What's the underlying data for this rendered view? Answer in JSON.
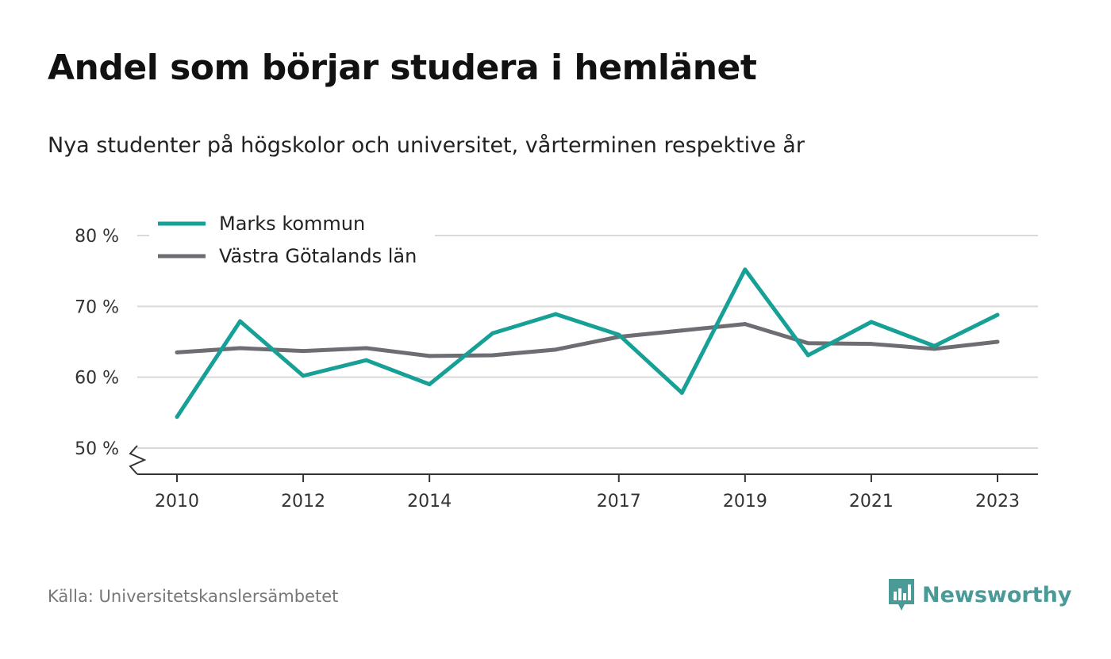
{
  "title": "Andel som börjar studera i hemlänet",
  "subtitle": "Nya studenter på högskolor och universitet, vårterminen respektive år",
  "source": "Källa: Universitetskanslersämbetet",
  "brand": "Newsworthy",
  "colors": {
    "marks": "#16a096",
    "vastra": "#6e6d73",
    "grid": "#d9d9d9",
    "axis": "#333333",
    "brand": "#4a9a98"
  },
  "chart_data": {
    "type": "line",
    "title": "Andel som börjar studera i hemlänet",
    "subtitle": "Nya studenter på högskolor och universitet, vårterminen respektive år",
    "x": [
      2010,
      2011,
      2012,
      2013,
      2014,
      2015,
      2016,
      2017,
      2018,
      2019,
      2020,
      2021,
      2022,
      2023
    ],
    "x_ticks": [
      2010,
      2012,
      2014,
      2017,
      2019,
      2021,
      2023
    ],
    "x_tick_labels": [
      "2010",
      "2012",
      "2014",
      "2017",
      "2019",
      "2021",
      "2023"
    ],
    "y_ticks": [
      50,
      60,
      70,
      80
    ],
    "y_tick_labels": [
      "50 %",
      "60 %",
      "70 %",
      "80 %"
    ],
    "ylim": [
      50,
      80
    ],
    "y_axis_break": true,
    "grid": true,
    "legend_position": "top-left",
    "series": [
      {
        "name": "Marks kommun",
        "color": "#16a096",
        "values": [
          54.4,
          67.9,
          60.2,
          62.4,
          59.0,
          66.2,
          68.9,
          66.0,
          57.8,
          75.2,
          63.1,
          67.8,
          64.4,
          68.8
        ]
      },
      {
        "name": "Västra Götalands län",
        "color": "#6e6d73",
        "values": [
          63.5,
          64.1,
          63.7,
          64.1,
          63.0,
          63.1,
          63.9,
          65.7,
          66.6,
          67.5,
          64.8,
          64.7,
          64.0,
          65.0
        ]
      }
    ]
  }
}
